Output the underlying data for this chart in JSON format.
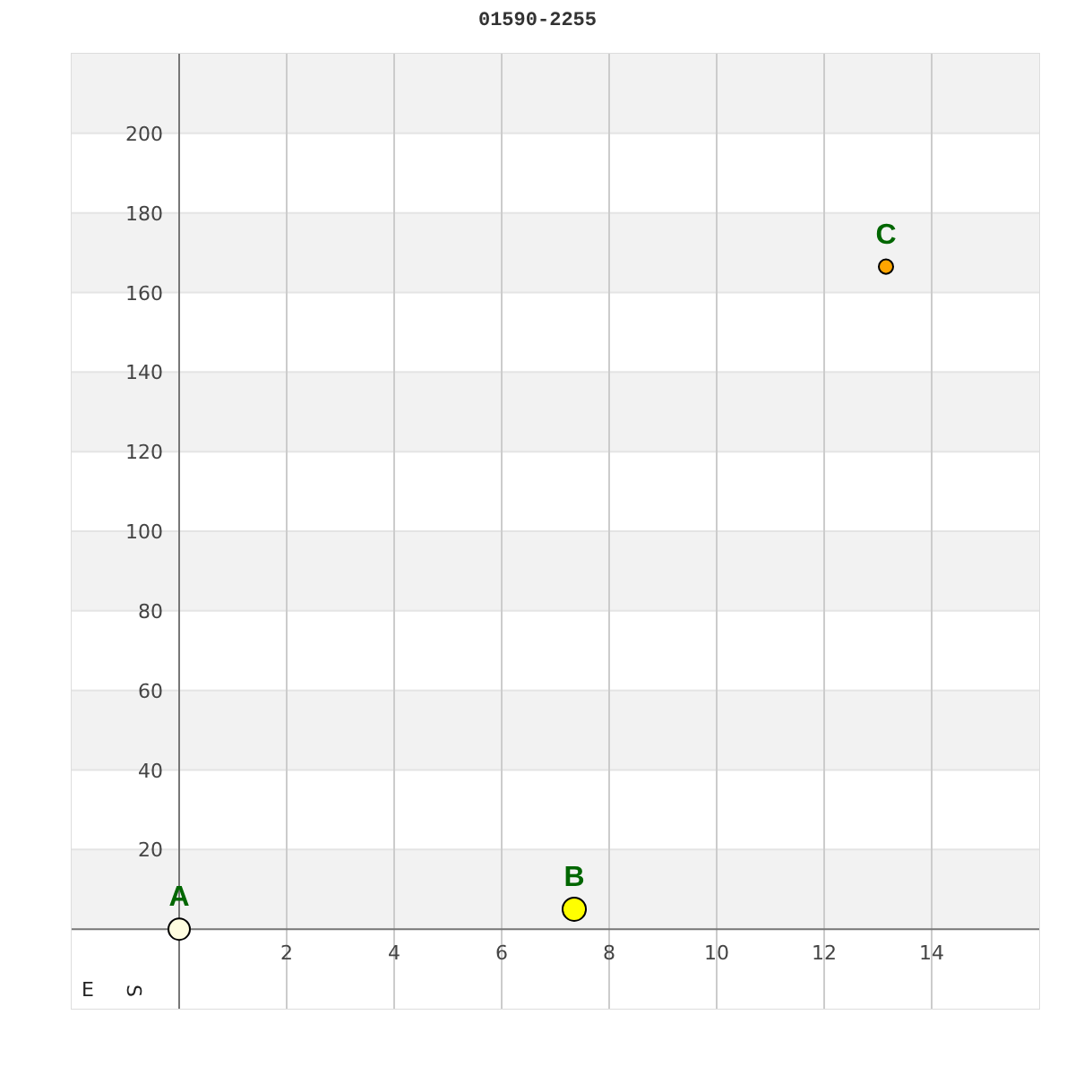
{
  "chart_data": {
    "type": "bubble",
    "title": "01590-2255",
    "xlabel": "E",
    "ylabel": "S",
    "x": [
      0,
      7.35,
      13.15
    ],
    "values": [
      0,
      5,
      166.5
    ],
    "sizes": [
      0.85,
      1,
      0.38
    ],
    "colors": [
      "#fffde0",
      "#ffff00",
      "#ffa500"
    ],
    "annotations": [
      {
        "text": "A",
        "x": 0,
        "y": 0
      },
      {
        "text": "B",
        "x": 7.35,
        "y": 5
      },
      {
        "text": "C",
        "x": 13.15,
        "y": 166.5
      }
    ],
    "xlim": [
      -2,
      16
    ],
    "xticks": [
      2,
      4,
      6,
      8,
      10,
      12,
      14
    ],
    "ylim": [
      -20,
      220
    ],
    "yticks": [
      20,
      40,
      60,
      80,
      100,
      120,
      140,
      160,
      180,
      200
    ],
    "grid": true
  }
}
